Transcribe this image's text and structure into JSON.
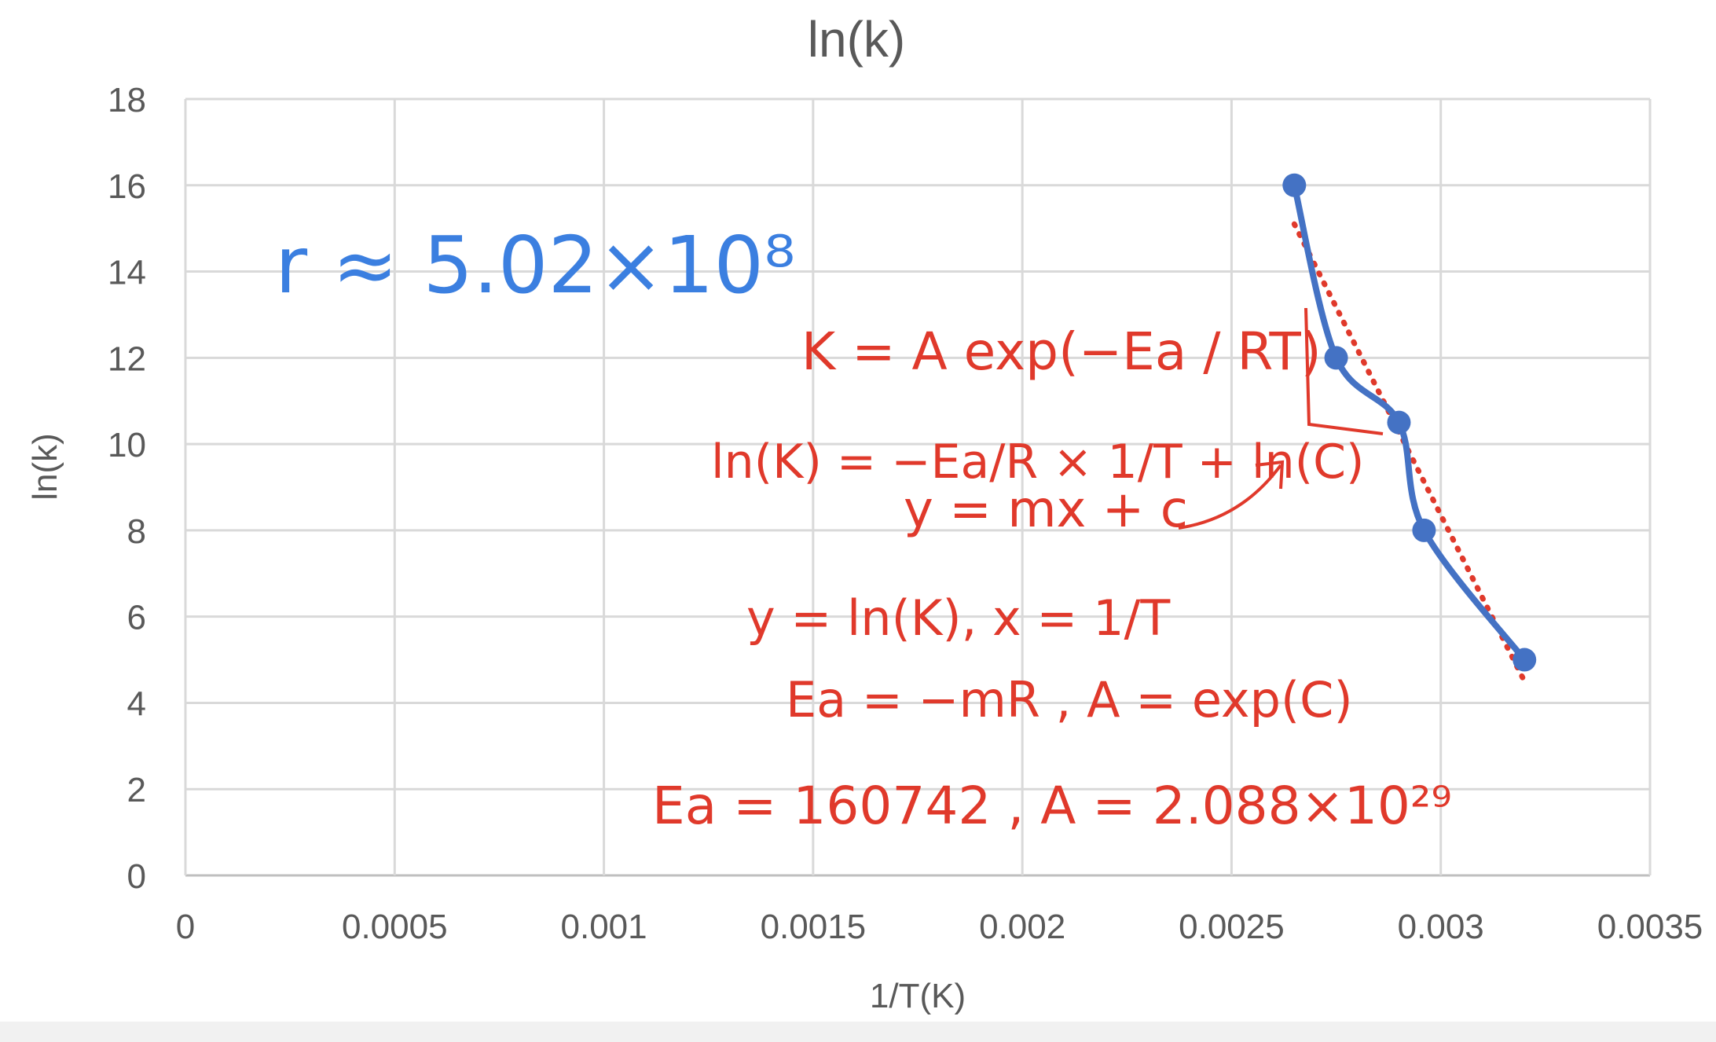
{
  "chart_data": {
    "type": "scatter",
    "title": "ln(k)",
    "xlabel": "1/T(K)",
    "ylabel": "ln(k)",
    "xlim": [
      0,
      0.0035
    ],
    "ylim": [
      0,
      18
    ],
    "x_ticks": [
      "0",
      "0.0005",
      "0.001",
      "0.0015",
      "0.002",
      "0.0025",
      "0.003",
      "0.0035"
    ],
    "y_ticks": [
      "0",
      "2",
      "4",
      "6",
      "8",
      "10",
      "12",
      "14",
      "16",
      "18"
    ],
    "grid": true,
    "series": [
      {
        "x": [
          0.00265,
          0.00275,
          0.0029,
          0.00296,
          0.0032
        ],
        "y": [
          16,
          12,
          10.5,
          8,
          5
        ],
        "color": "#4472c4",
        "smooth_line": true
      }
    ],
    "trendline": {
      "type": "linear",
      "x": [
        0.00265,
        0.0032
      ],
      "y": [
        15.1,
        4.5
      ],
      "color": "#e0392b",
      "style": "dotted"
    },
    "annotations": {
      "r_value": "r ≈ 5.02×10⁸",
      "eq1": "K = A exp(−Ea / RT)",
      "eq2": "ln(K) = −Ea/R × 1/T + ln(C)",
      "eq3": "y = mx + c",
      "eq4": "y = ln(K), x = 1/T",
      "eq5": "Ea = −mR , A = exp(C)",
      "eq6": "Ea = 160742 , A = 2.088×10²⁹"
    }
  },
  "colors": {
    "series": "#4472c4",
    "trendline": "#e0392b",
    "ink_blue": "#3b7fe0",
    "ink_red": "#e0392b",
    "grid": "#d9d9d9",
    "text": "#595959"
  }
}
